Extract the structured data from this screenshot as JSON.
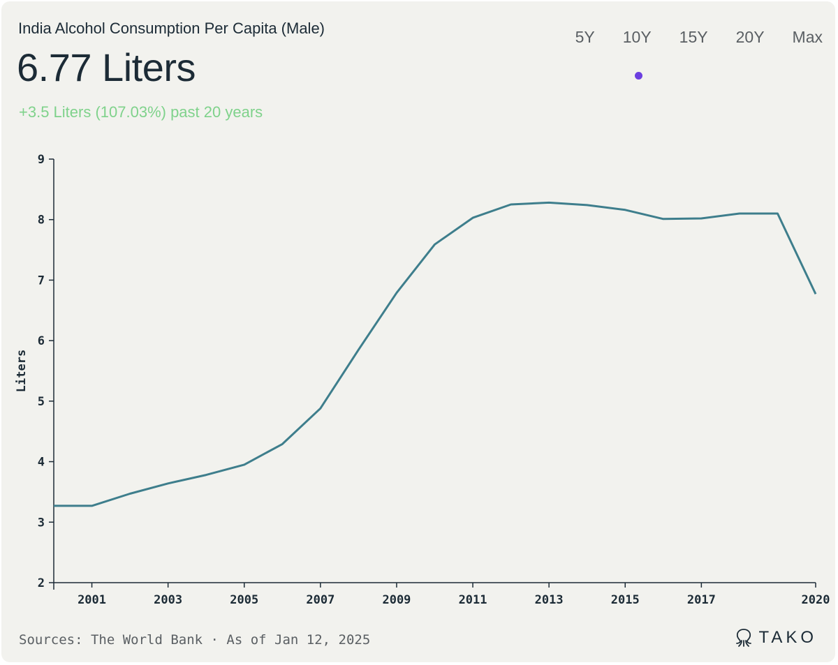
{
  "header": {
    "title": "India Alcohol Consumption Per Capita (Male)",
    "value": "6.77 Liters",
    "change": "+3.5 Liters (107.03%) past 20 years"
  },
  "ranges": [
    "5Y",
    "10Y",
    "15Y",
    "20Y",
    "Max"
  ],
  "active_range": "10Y",
  "footer": {
    "source": "Sources: The World Bank · As of Jan 12, 2025",
    "logo": "TAKO"
  },
  "colors": {
    "line": "#3e7e8c",
    "accent": "#6c3fe0",
    "positive": "#7fd28b",
    "text": "#1c2b36"
  },
  "chart_data": {
    "type": "line",
    "title": "India Alcohol Consumption Per Capita (Male)",
    "xlabel": "",
    "ylabel": "Liters",
    "xlim": [
      2000,
      2020
    ],
    "ylim": [
      2,
      9
    ],
    "yticks": [
      2,
      3,
      4,
      5,
      6,
      7,
      8,
      9
    ],
    "xticks": [
      2001,
      2003,
      2005,
      2007,
      2009,
      2011,
      2013,
      2015,
      2017,
      2020
    ],
    "grid": false,
    "series": [
      {
        "x": [
          2000,
          2001,
          2002,
          2003,
          2004,
          2005,
          2006,
          2007,
          2008,
          2009,
          2010,
          2011,
          2012,
          2013,
          2014,
          2015,
          2016,
          2017,
          2018,
          2019,
          2020
        ],
        "values": [
          3.27,
          3.27,
          3.47,
          3.64,
          3.78,
          3.95,
          4.29,
          4.88,
          5.85,
          6.79,
          7.59,
          8.03,
          8.25,
          8.28,
          8.24,
          8.16,
          8.01,
          8.02,
          8.1,
          8.1,
          6.77
        ]
      }
    ]
  }
}
